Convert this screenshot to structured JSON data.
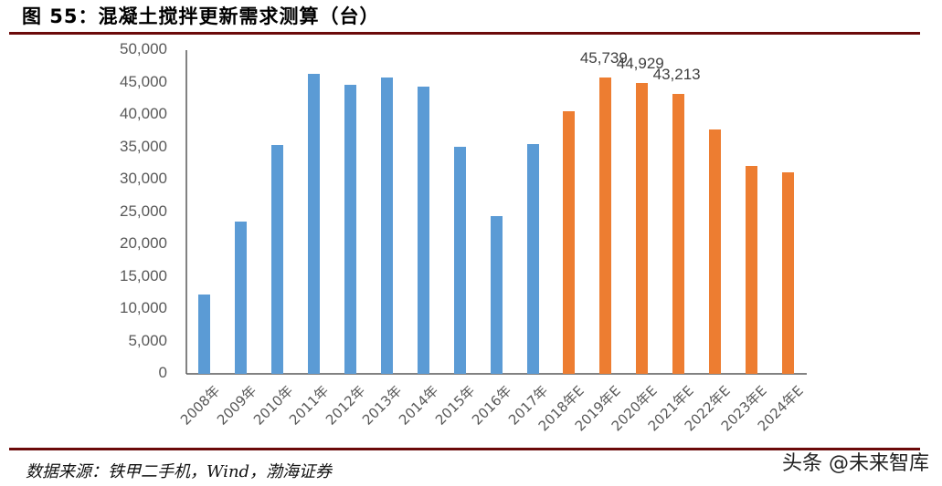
{
  "figure": {
    "title": "图 55：混凝土搅拌更新需求测算（台）",
    "source": "数据来源：铁甲二手机，Wind，渤海证券",
    "watermark": "头条 @未来智库"
  },
  "colors": {
    "actual": "#5b9bd5",
    "estimate": "#ed7d31",
    "rule": "#6b0a0a",
    "axis": "#595959"
  },
  "chart_data": {
    "type": "bar",
    "title": "混凝土搅拌更新需求测算（台）",
    "xlabel": "",
    "ylabel": "",
    "ylim": [
      0,
      50000
    ],
    "yticks": [
      0,
      5000,
      10000,
      15000,
      20000,
      25000,
      30000,
      35000,
      40000,
      45000,
      50000
    ],
    "ytick_labels": [
      "0",
      "5,000",
      "10,000",
      "15,000",
      "20,000",
      "25,000",
      "30,000",
      "35,000",
      "40,000",
      "45,000",
      "50,000"
    ],
    "grid": false,
    "legend": null,
    "categories": [
      "2008年",
      "2009年",
      "2010年",
      "2011年",
      "2012年",
      "2013年",
      "2014年",
      "2015年",
      "2016年",
      "2017年",
      "2018年E",
      "2019年E",
      "2020年E",
      "2021年E",
      "2022年E",
      "2023年E",
      "2024年E"
    ],
    "values": [
      12250,
      23500,
      35350,
      46300,
      44650,
      45800,
      44350,
      35050,
      24350,
      35500,
      40550,
      45739,
      44929,
      43213,
      37750,
      32100,
      31100
    ],
    "series_type": [
      "actual",
      "actual",
      "actual",
      "actual",
      "actual",
      "actual",
      "actual",
      "actual",
      "actual",
      "actual",
      "estimate",
      "estimate",
      "estimate",
      "estimate",
      "estimate",
      "estimate",
      "estimate"
    ],
    "annotations": [
      {
        "category": "2019年E",
        "label": "45,739"
      },
      {
        "category": "2020年E",
        "label": "44,929"
      },
      {
        "category": "2021年E",
        "label": "43,213"
      }
    ]
  }
}
